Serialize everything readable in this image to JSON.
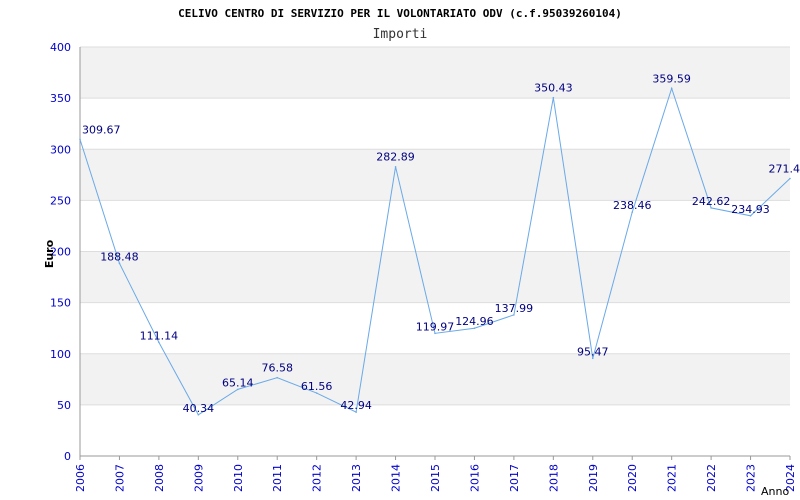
{
  "chart_data": {
    "type": "line",
    "title": "CELIVO CENTRO DI SERVIZIO PER IL VOLONTARIATO ODV (c.f.95039260104)",
    "subtitle": "Importi",
    "xlabel": "Anno",
    "ylabel": "Euro",
    "ylim": [
      0,
      400
    ],
    "yticks": [
      0,
      50,
      100,
      150,
      200,
      250,
      300,
      350,
      400
    ],
    "grid": true,
    "legend": "none",
    "line_color": "#6aa9e8",
    "tick_color": "#0000cc",
    "data_label_color": "#000080",
    "band_color": "#f2f2f2",
    "grid_color": "#dddddd",
    "categories": [
      "2006",
      "2007",
      "2008",
      "2009",
      "2010",
      "2011",
      "2012",
      "2013",
      "2014",
      "2015",
      "2016",
      "2017",
      "2018",
      "2019",
      "2020",
      "2021",
      "2022",
      "2023",
      "2024"
    ],
    "series": [
      {
        "values": [
          309.67,
          188.48,
          111.14,
          40.34,
          65.14,
          76.58,
          61.56,
          42.94,
          282.89,
          119.97,
          124.96,
          137.99,
          350.43,
          95.47,
          238.46,
          359.59,
          242.62,
          234.93,
          271.4
        ],
        "labels": [
          "309.67",
          "188.48",
          "111.14",
          "40.34",
          "65.14",
          "76.58",
          "61.56",
          "42.94",
          "282.89",
          "119.97",
          "124.96",
          "137.99",
          "350.43",
          "95.47",
          "238.46",
          "359.59",
          "242.62",
          "234.93",
          "271.4"
        ]
      }
    ]
  }
}
